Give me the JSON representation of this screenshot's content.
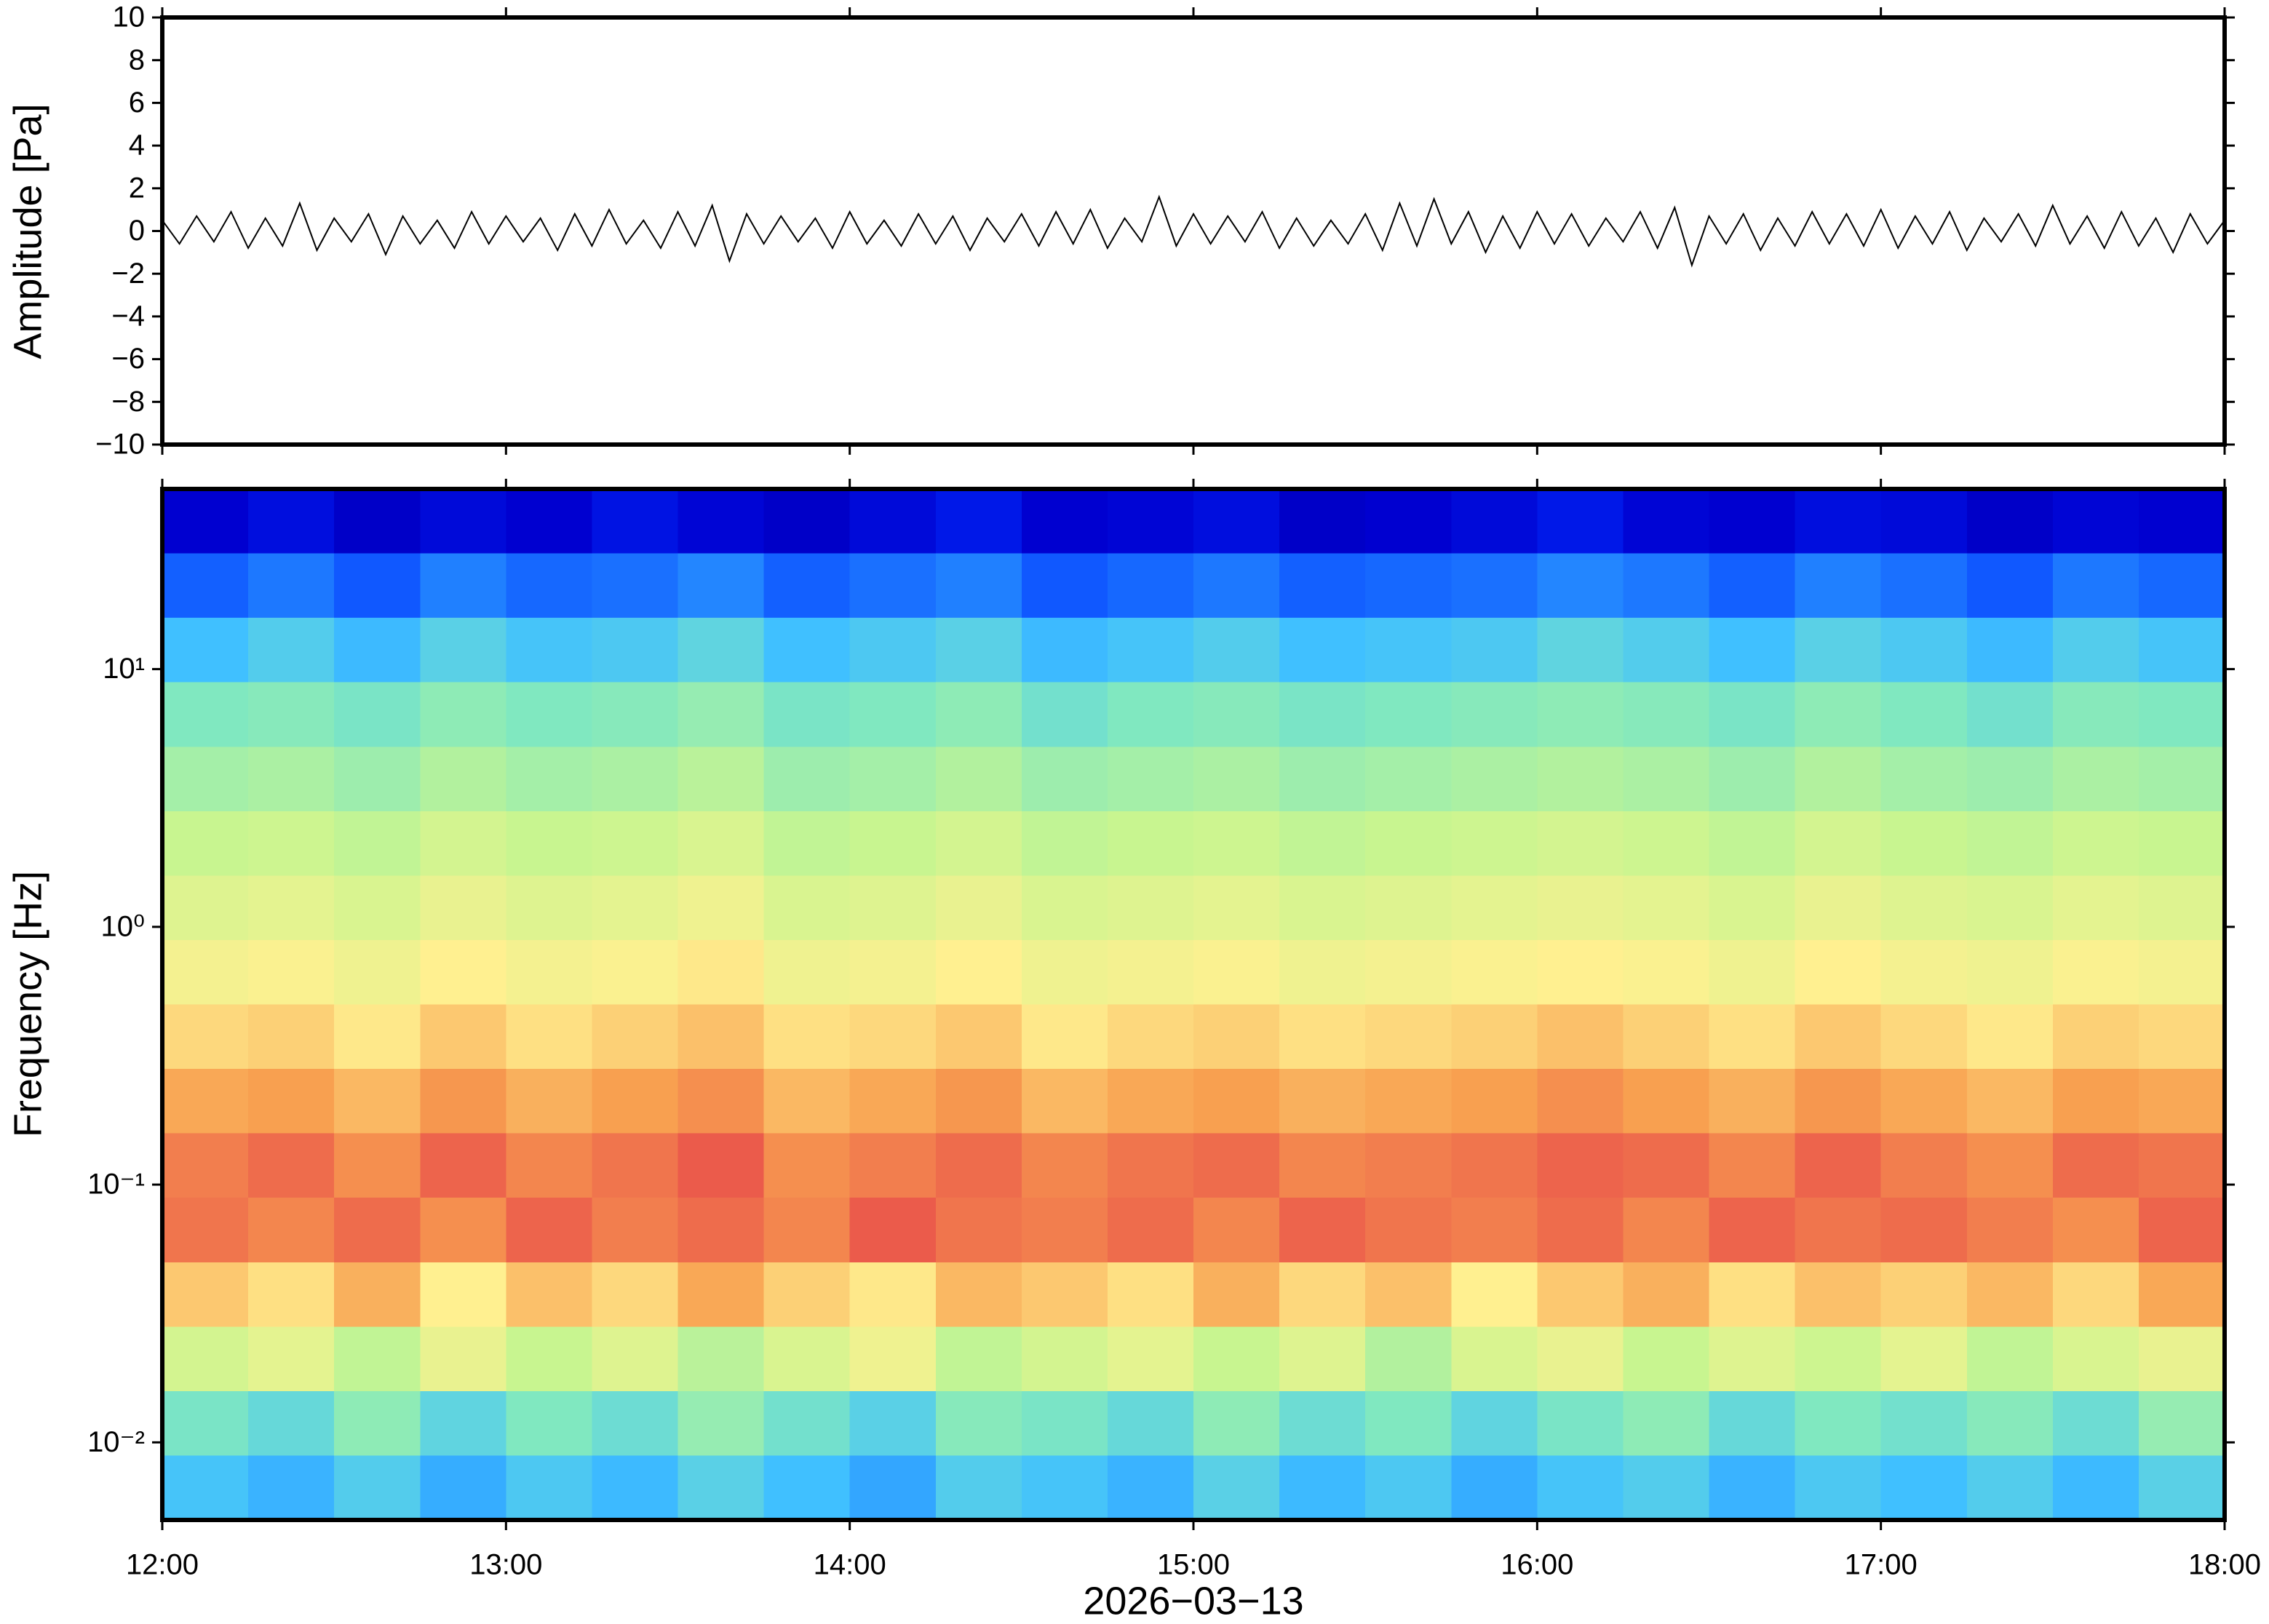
{
  "chart_data": [
    {
      "type": "line",
      "ylabel": "Amplitude [Pa]",
      "color": "#000000",
      "xlim": [
        12,
        18
      ],
      "ylim": [
        -10,
        10
      ],
      "yticks": [
        {
          "value": -10,
          "label": "−10"
        },
        {
          "value": -8,
          "label": "−8"
        },
        {
          "value": -6,
          "label": "−6"
        },
        {
          "value": -4,
          "label": "−4"
        },
        {
          "value": -2,
          "label": "−2"
        },
        0,
        2,
        4,
        6,
        8,
        10
      ],
      "x": [
        12,
        12.05,
        12.1,
        12.15,
        12.2,
        12.25,
        12.3,
        12.35,
        12.4,
        12.45,
        12.5,
        12.55,
        12.6,
        12.65,
        12.7,
        12.75,
        12.8,
        12.85,
        12.9,
        12.95,
        13,
        13.05,
        13.1,
        13.15,
        13.2,
        13.25,
        13.3,
        13.35,
        13.4,
        13.45,
        13.5,
        13.55,
        13.6,
        13.65,
        13.7,
        13.75,
        13.8,
        13.85,
        13.9,
        13.95,
        14,
        14.05,
        14.1,
        14.15,
        14.2,
        14.25,
        14.3,
        14.35,
        14.4,
        14.45,
        14.5,
        14.55,
        14.6,
        14.65,
        14.7,
        14.75,
        14.8,
        14.85,
        14.9,
        14.95,
        15,
        15.05,
        15.1,
        15.15,
        15.2,
        15.25,
        15.3,
        15.35,
        15.4,
        15.45,
        15.5,
        15.55,
        15.6,
        15.65,
        15.7,
        15.75,
        15.8,
        15.85,
        15.9,
        15.95,
        16,
        16.05,
        16.1,
        16.15,
        16.2,
        16.25,
        16.3,
        16.35,
        16.4,
        16.45,
        16.5,
        16.55,
        16.6,
        16.65,
        16.7,
        16.75,
        16.8,
        16.85,
        16.9,
        16.95,
        17,
        17.05,
        17.1,
        17.15,
        17.2,
        17.25,
        17.3,
        17.35,
        17.4,
        17.45,
        17.5,
        17.55,
        17.6,
        17.65,
        17.7,
        17.75,
        17.8,
        17.85,
        17.9,
        17.95,
        18
      ],
      "values": [
        0.5,
        -0.6,
        0.7,
        -0.5,
        0.9,
        -0.8,
        0.6,
        -0.7,
        1.3,
        -0.9,
        0.6,
        -0.5,
        0.8,
        -1.1,
        0.7,
        -0.6,
        0.5,
        -0.8,
        0.9,
        -0.6,
        0.7,
        -0.5,
        0.6,
        -0.9,
        0.8,
        -0.7,
        1.0,
        -0.6,
        0.5,
        -0.8,
        0.9,
        -0.7,
        1.2,
        -1.4,
        0.8,
        -0.6,
        0.7,
        -0.5,
        0.6,
        -0.8,
        0.9,
        -0.6,
        0.5,
        -0.7,
        0.8,
        -0.6,
        0.7,
        -0.9,
        0.6,
        -0.5,
        0.8,
        -0.7,
        0.9,
        -0.6,
        1.0,
        -0.8,
        0.6,
        -0.5,
        1.6,
        -0.7,
        0.8,
        -0.6,
        0.7,
        -0.5,
        0.9,
        -0.8,
        0.6,
        -0.7,
        0.5,
        -0.6,
        0.8,
        -0.9,
        1.3,
        -0.7,
        1.5,
        -0.6,
        0.9,
        -1.0,
        0.7,
        -0.8,
        0.9,
        -0.6,
        0.8,
        -0.7,
        0.6,
        -0.5,
        0.9,
        -0.8,
        1.1,
        -1.6,
        0.7,
        -0.6,
        0.8,
        -0.9,
        0.6,
        -0.7,
        0.9,
        -0.6,
        0.8,
        -0.7,
        1.0,
        -0.8,
        0.7,
        -0.6,
        0.9,
        -0.9,
        0.6,
        -0.5,
        0.8,
        -0.7,
        1.2,
        -0.6,
        0.7,
        -0.8,
        0.9,
        -0.7,
        0.6,
        -1.0,
        0.8,
        -0.6,
        0.5
      ]
    },
    {
      "type": "heatmap",
      "ylabel": "Frequency [Hz]",
      "xlabel": "2026−03−13",
      "log_y": true,
      "xlim": [
        12,
        18
      ],
      "ylim": [
        0.005,
        50
      ],
      "xticks": [
        {
          "value": 12,
          "label": "12:00"
        },
        {
          "value": 13,
          "label": "13:00"
        },
        {
          "value": 14,
          "label": "14:00"
        },
        {
          "value": 15,
          "label": "15:00"
        },
        {
          "value": 16,
          "label": "16:00"
        },
        {
          "value": 17,
          "label": "17:00"
        },
        {
          "value": 18,
          "label": "18:00"
        }
      ],
      "yticks": [
        {
          "value": 10,
          "label": "10¹"
        },
        {
          "value": 1,
          "label": "10⁰"
        },
        {
          "value": 0.1,
          "label": "10⁻¹"
        },
        {
          "value": 0.01,
          "label": "10⁻²"
        }
      ],
      "colormap": [
        "#00007f",
        "#0000d0",
        "#0030ff",
        "#2080ff",
        "#40c0ff",
        "#80e8c0",
        "#c8f590",
        "#fff090",
        "#f8a050",
        "#e84a4a"
      ],
      "zlim": [
        0,
        9
      ],
      "xbins": [
        12,
        12.25,
        12.5,
        12.75,
        13,
        13.25,
        13.5,
        13.75,
        14,
        14.25,
        14.5,
        14.75,
        15,
        15.25,
        15.5,
        15.75,
        16,
        16.25,
        16.5,
        16.75,
        17,
        17.25,
        17.5,
        17.75,
        18
      ],
      "ybins": [
        50,
        28.1,
        15.8,
        8.89,
        5,
        2.81,
        1.58,
        0.889,
        0.5,
        0.281,
        0.158,
        0.0889,
        0.05,
        0.0281,
        0.0158,
        0.00889,
        0.005
      ],
      "z": [
        [
          1.0,
          1.3,
          0.9,
          1.2,
          1.0,
          1.4,
          1.1,
          0.9,
          1.2,
          1.5,
          1.0,
          1.1,
          1.3,
          0.9,
          1.0,
          1.2,
          1.5,
          1.1,
          1.0,
          1.3,
          1.2,
          0.9,
          1.1,
          1.0
        ],
        [
          2.6,
          2.9,
          2.5,
          3.0,
          2.7,
          2.8,
          3.1,
          2.6,
          2.8,
          3.0,
          2.5,
          2.7,
          2.9,
          2.6,
          2.7,
          2.8,
          3.1,
          2.9,
          2.6,
          3.0,
          2.8,
          2.5,
          2.9,
          2.7
        ],
        [
          4.0,
          4.3,
          3.9,
          4.4,
          4.1,
          4.2,
          4.5,
          4.0,
          4.2,
          4.4,
          3.9,
          4.1,
          4.3,
          4.0,
          4.1,
          4.2,
          4.5,
          4.3,
          4.0,
          4.4,
          4.2,
          3.9,
          4.3,
          4.1
        ],
        [
          5.0,
          5.1,
          4.9,
          5.2,
          5.0,
          5.1,
          5.3,
          4.9,
          5.0,
          5.2,
          4.8,
          5.0,
          5.1,
          4.9,
          5.0,
          5.1,
          5.2,
          5.1,
          4.9,
          5.2,
          5.0,
          4.8,
          5.1,
          5.0
        ],
        [
          5.5,
          5.6,
          5.4,
          5.7,
          5.5,
          5.6,
          5.8,
          5.4,
          5.5,
          5.7,
          5.4,
          5.5,
          5.6,
          5.4,
          5.5,
          5.6,
          5.7,
          5.6,
          5.4,
          5.7,
          5.5,
          5.4,
          5.6,
          5.5
        ],
        [
          6.0,
          6.1,
          5.9,
          6.2,
          6.0,
          6.1,
          6.3,
          5.9,
          6.0,
          6.2,
          5.9,
          6.0,
          6.1,
          5.9,
          6.0,
          6.1,
          6.2,
          6.1,
          5.9,
          6.2,
          6.0,
          5.9,
          6.1,
          6.0
        ],
        [
          6.4,
          6.5,
          6.3,
          6.6,
          6.4,
          6.5,
          6.7,
          6.3,
          6.4,
          6.6,
          6.3,
          6.4,
          6.5,
          6.3,
          6.4,
          6.5,
          6.6,
          6.5,
          6.3,
          6.6,
          6.4,
          6.3,
          6.5,
          6.4
        ],
        [
          6.8,
          6.9,
          6.7,
          7.0,
          6.8,
          6.9,
          7.1,
          6.7,
          6.8,
          7.0,
          6.7,
          6.8,
          6.9,
          6.7,
          6.8,
          6.9,
          7.0,
          6.9,
          6.7,
          7.0,
          6.8,
          6.7,
          6.9,
          6.8
        ],
        [
          7.3,
          7.4,
          7.1,
          7.5,
          7.2,
          7.4,
          7.6,
          7.2,
          7.3,
          7.5,
          7.1,
          7.3,
          7.4,
          7.2,
          7.3,
          7.4,
          7.6,
          7.4,
          7.2,
          7.5,
          7.3,
          7.1,
          7.4,
          7.3
        ],
        [
          7.9,
          8.0,
          7.7,
          8.1,
          7.8,
          8.0,
          8.2,
          7.7,
          7.9,
          8.1,
          7.7,
          7.9,
          8.0,
          7.8,
          7.9,
          8.0,
          8.2,
          8.0,
          7.8,
          8.1,
          7.9,
          7.7,
          8.0,
          7.9
        ],
        [
          8.4,
          8.6,
          8.2,
          8.7,
          8.3,
          8.5,
          8.8,
          8.2,
          8.4,
          8.6,
          8.3,
          8.5,
          8.6,
          8.3,
          8.4,
          8.5,
          8.7,
          8.6,
          8.3,
          8.7,
          8.4,
          8.2,
          8.6,
          8.5
        ],
        [
          8.5,
          8.3,
          8.6,
          8.2,
          8.7,
          8.4,
          8.6,
          8.3,
          8.8,
          8.5,
          8.4,
          8.6,
          8.3,
          8.7,
          8.5,
          8.4,
          8.6,
          8.3,
          8.7,
          8.5,
          8.6,
          8.4,
          8.2,
          8.7
        ],
        [
          7.5,
          7.2,
          7.8,
          7.0,
          7.6,
          7.3,
          7.9,
          7.4,
          7.1,
          7.7,
          7.5,
          7.2,
          7.8,
          7.3,
          7.6,
          7.0,
          7.5,
          7.8,
          7.2,
          7.6,
          7.4,
          7.7,
          7.3,
          7.9
        ],
        [
          6.2,
          6.5,
          5.9,
          6.6,
          6.0,
          6.4,
          5.8,
          6.3,
          6.7,
          5.9,
          6.2,
          6.5,
          6.0,
          6.4,
          5.7,
          6.3,
          6.6,
          6.0,
          6.4,
          6.1,
          6.5,
          5.9,
          6.3,
          6.6
        ],
        [
          4.9,
          4.6,
          5.2,
          4.5,
          5.0,
          4.7,
          5.3,
          4.8,
          4.4,
          5.1,
          4.9,
          4.6,
          5.2,
          4.7,
          5.0,
          4.5,
          4.9,
          5.2,
          4.6,
          5.0,
          4.8,
          5.1,
          4.7,
          5.3
        ],
        [
          4.1,
          3.8,
          4.3,
          3.7,
          4.2,
          3.9,
          4.4,
          4.0,
          3.6,
          4.3,
          4.1,
          3.8,
          4.4,
          3.9,
          4.2,
          3.7,
          4.1,
          4.3,
          3.8,
          4.2,
          4.0,
          4.3,
          3.9,
          4.4
        ]
      ]
    }
  ]
}
